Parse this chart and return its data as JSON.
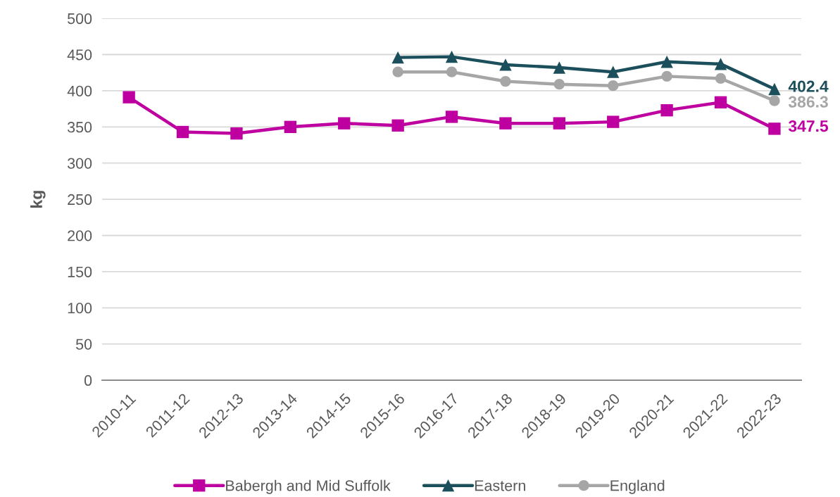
{
  "chart_data": {
    "type": "line",
    "ylabel": "kg",
    "categories": [
      "2010-11",
      "2011-12",
      "2012-13",
      "2013-14",
      "2014-15",
      "2015-16",
      "2016-17",
      "2017-18",
      "2018-19",
      "2019-20",
      "2020-21",
      "2021-22",
      "2022-23"
    ],
    "ylim": [
      0,
      500
    ],
    "yticks": [
      0,
      50,
      100,
      150,
      200,
      250,
      300,
      350,
      400,
      450,
      500
    ],
    "grid": "y",
    "legend": "bottom",
    "series": [
      {
        "name": "Babergh and Mid Suffolk",
        "color": "#bf00a0",
        "marker": "square",
        "values": [
          391,
          343,
          341,
          350,
          355,
          352,
          364,
          355,
          355,
          357,
          373,
          384,
          347.5
        ],
        "value_labels": [
          null,
          null,
          null,
          null,
          null,
          null,
          null,
          null,
          null,
          null,
          null,
          null,
          "347.5"
        ]
      },
      {
        "name": "Eastern",
        "color": "#1b4f5c",
        "marker": "triangle",
        "values": [
          null,
          null,
          null,
          null,
          null,
          446,
          447,
          436,
          432,
          426,
          440,
          437,
          402.4
        ],
        "value_labels": [
          null,
          null,
          null,
          null,
          null,
          null,
          null,
          null,
          null,
          null,
          null,
          null,
          "402.4"
        ]
      },
      {
        "name": "England",
        "color": "#a6a6a6",
        "marker": "circle",
        "values": [
          null,
          null,
          null,
          null,
          null,
          426,
          426,
          413,
          409,
          407,
          420,
          417,
          386.3
        ],
        "value_labels": [
          null,
          null,
          null,
          null,
          null,
          null,
          null,
          null,
          null,
          null,
          null,
          null,
          "386.3"
        ]
      }
    ]
  }
}
